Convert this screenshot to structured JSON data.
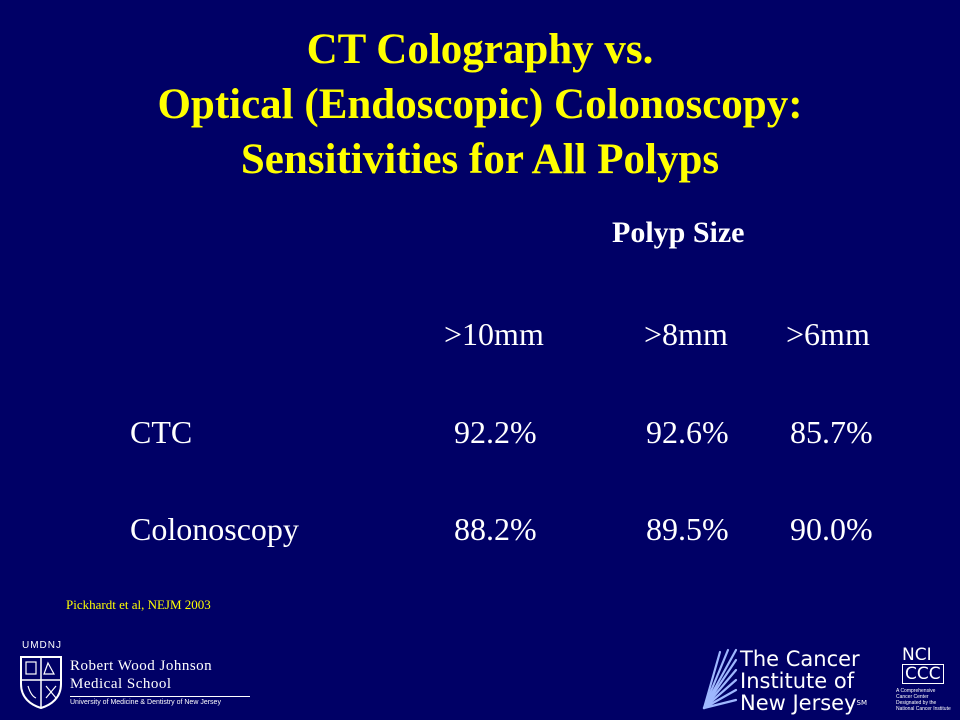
{
  "slide": {
    "title_lines": [
      "CT Colography vs.",
      "Optical (Endoscopic) Colonoscopy:",
      "Sensitivities for All Polyps"
    ],
    "polyp_size_label": "Polyp Size",
    "table": {
      "columns": [
        ">10mm",
        ">8mm",
        ">6mm"
      ],
      "rows": [
        {
          "label": "CTC",
          "values": [
            "92.2%",
            "92.6%",
            "85.7%"
          ]
        },
        {
          "label": "Colonoscopy",
          "values": [
            "88.2%",
            "89.5%",
            "90.0%"
          ]
        }
      ]
    },
    "citation": "Pickhardt et al, NEJM 2003"
  },
  "logos": {
    "umdnj": {
      "label": "UMDNJ",
      "line1": "Robert Wood Johnson",
      "line2": "Medical School",
      "subtitle": "University of Medicine & Dentistry of New Jersey"
    },
    "cinj": {
      "line1": "The Cancer",
      "line2": "Institute of",
      "line3": "New Jersey",
      "sm": "SM"
    },
    "nci": {
      "line1": "NCI",
      "line2": "CCC",
      "subtitle": "A Comprehensive Cancer Center Designated by the National Cancer Institute"
    }
  },
  "colors": {
    "background": "#000066",
    "title": "#ffff00",
    "text": "#ffffff",
    "citation": "#ffff00"
  }
}
